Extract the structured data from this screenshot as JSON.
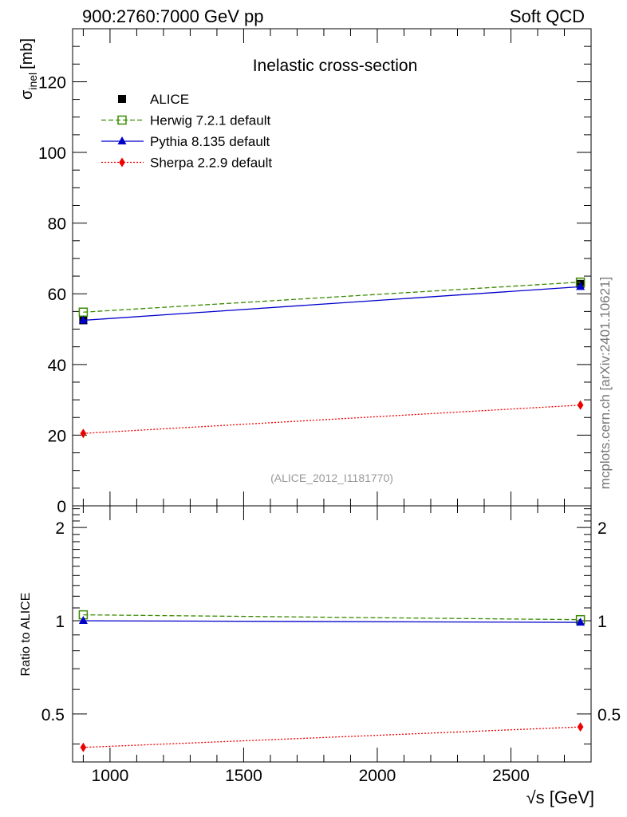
{
  "header": {
    "left": "900:2760:7000 GeV pp",
    "right": "Soft QCD"
  },
  "side_label": "mcplots.cern.ch [arXiv:2401.10621]",
  "reference": "(ALICE_2012_I1181770)",
  "chart_data": [
    {
      "type": "scatter",
      "panel": "main",
      "title": "Inelastic cross-section",
      "ylabel_main": "σ",
      "ylabel_sub": "inel",
      "ylabel_unit": "[mb]",
      "xlim": [
        860,
        2800
      ],
      "ylim": [
        0,
        135
      ],
      "yticks": [
        0,
        20,
        40,
        60,
        80,
        100,
        120
      ],
      "ytick_labels": [
        "0",
        "20",
        "40",
        "60",
        "80",
        "100",
        "120"
      ],
      "series": [
        {
          "name": "ALICE",
          "color": "#000000",
          "marker": "filled-square",
          "line": "none",
          "x": [
            900,
            2760
          ],
          "y": [
            52.5,
            62.8
          ]
        },
        {
          "name": "Herwig 7.2.1 default",
          "color": "#3a8a00",
          "marker": "open-square",
          "line": "dashed",
          "x": [
            900,
            2760
          ],
          "y": [
            54.8,
            63.3
          ]
        },
        {
          "name": "Pythia 8.135 default",
          "color": "#0000cc",
          "marker": "triangle",
          "line": "solid",
          "x": [
            900,
            2760
          ],
          "y": [
            52.5,
            62.0
          ]
        },
        {
          "name": "Sherpa 2.2.9 default",
          "color": "#ee0000",
          "marker": "diamond",
          "line": "dotted",
          "x": [
            900,
            2760
          ],
          "y": [
            20.5,
            28.5
          ]
        }
      ]
    },
    {
      "type": "scatter",
      "panel": "ratio",
      "ylabel": "Ratio to ALICE",
      "xlabel": "√s [GeV]",
      "xlim": [
        860,
        2800
      ],
      "ylim": [
        0.35,
        2.35
      ],
      "yscale": "log",
      "xticks": [
        1000,
        1500,
        2000,
        2500
      ],
      "xtick_labels": [
        "1000",
        "1500",
        "2000",
        "2500"
      ],
      "yticks": [
        0.5,
        1,
        2
      ],
      "ytick_labels": [
        "0.5",
        "1",
        "2"
      ],
      "series": [
        {
          "name": "Herwig 7.2.1 default",
          "color": "#3a8a00",
          "marker": "open-square",
          "line": "dashed",
          "x": [
            900,
            2760
          ],
          "y": [
            1.045,
            1.008
          ]
        },
        {
          "name": "Pythia 8.135 default",
          "color": "#0000cc",
          "marker": "triangle",
          "line": "solid",
          "x": [
            900,
            2760
          ],
          "y": [
            1.0,
            0.988
          ]
        },
        {
          "name": "Sherpa 2.2.9 default",
          "color": "#ee0000",
          "marker": "diamond",
          "line": "dotted",
          "x": [
            900,
            2760
          ],
          "y": [
            0.39,
            0.454
          ]
        }
      ]
    }
  ]
}
